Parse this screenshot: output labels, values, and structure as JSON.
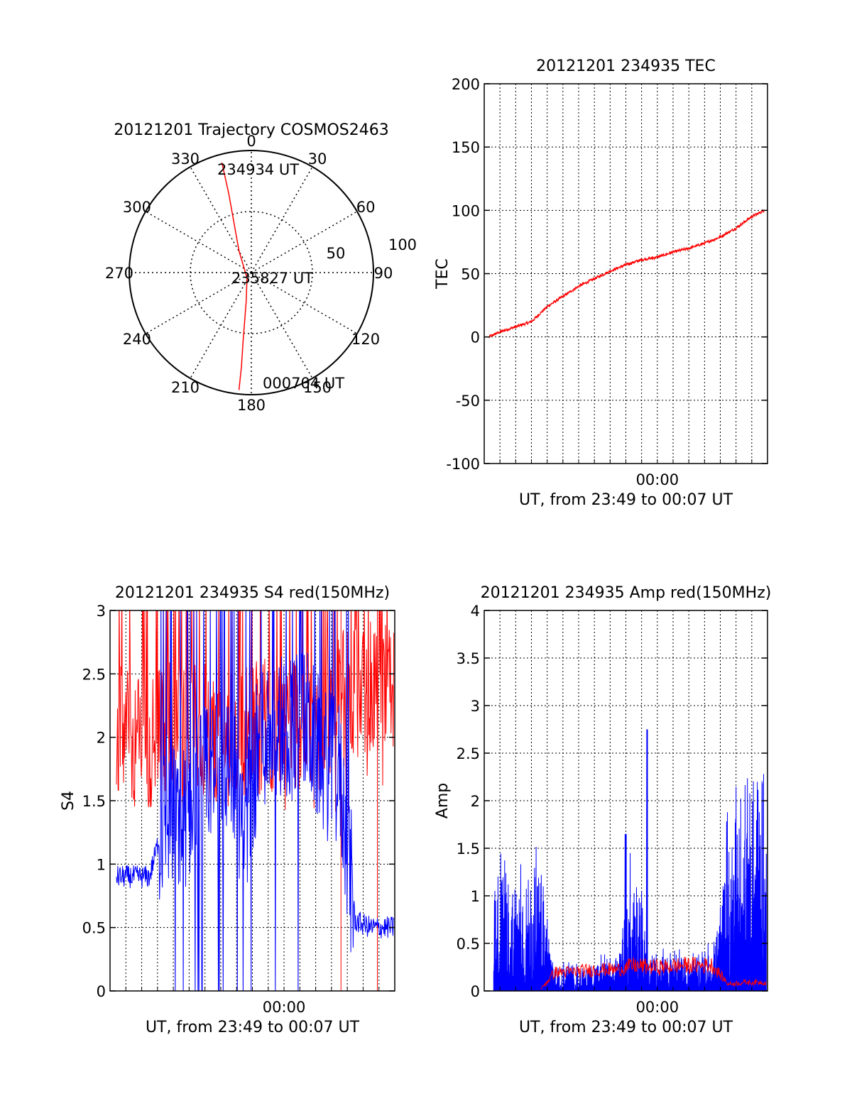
{
  "colors": {
    "red": "#ff0000",
    "blue": "#0000ff",
    "axis": "#000000"
  },
  "polar": {
    "title": "20121201 Trajectory COSMOS2463",
    "azimuth_labels": [
      "0",
      "30",
      "60",
      "90",
      "120",
      "150",
      "180",
      "210",
      "240",
      "270",
      "300",
      "330"
    ],
    "radial_labels": [
      "50",
      "100"
    ],
    "start_label": "234934 UT",
    "mid_label": "235827 UT",
    "end_label": "000704 UT"
  },
  "chart_data": [
    {
      "id": "trajectory",
      "type": "polar",
      "title": "20121201 Trajectory COSMOS2463",
      "azimuth_ticks": [
        0,
        30,
        60,
        90,
        120,
        150,
        180,
        210,
        240,
        270,
        300,
        330
      ],
      "radial_ticks": [
        50,
        100
      ],
      "series": [
        {
          "color": "red",
          "points": [
            {
              "az": 345,
              "zenith_angle": 84
            },
            {
              "az": 344,
              "zenith_angle": 60
            },
            {
              "az": 340,
              "zenith_angle": 36
            },
            {
              "az": 330,
              "zenith_angle": 18
            },
            {
              "az": 220,
              "zenith_angle": 5
            },
            {
              "az": 190,
              "zenith_angle": 22
            },
            {
              "az": 187,
              "zenith_angle": 48
            },
            {
              "az": 186,
              "zenith_angle": 70
            },
            {
              "az": 186,
              "zenith_angle": 87
            }
          ]
        }
      ]
    },
    {
      "id": "tec",
      "type": "line",
      "title": "20121201 234935 TEC",
      "xlabel": "UT, from 23:49 to 00:07 UT",
      "ylabel": "TEC",
      "x_tick_labels": [
        {
          "value": 11,
          "label": "00:00"
        }
      ],
      "xlim": [
        0,
        18
      ],
      "ylim": [
        -100,
        200
      ],
      "y_ticks": [
        -100,
        -50,
        0,
        50,
        100,
        150,
        200
      ],
      "series": [
        {
          "color": "red",
          "x": [
            0.3,
            1,
            2,
            3,
            4,
            5,
            6,
            7,
            8,
            9,
            10,
            11,
            12,
            13,
            14,
            15,
            16,
            17,
            17.8
          ],
          "y": [
            0,
            4,
            8,
            12,
            24,
            32,
            40,
            46,
            52,
            57,
            61,
            63,
            67,
            70,
            74,
            79,
            86,
            95,
            100
          ]
        }
      ]
    },
    {
      "id": "s4",
      "type": "line",
      "title": "20121201 234935 S4 red(150MHz)",
      "xlabel": "UT, from 23:49 to 00:07 UT",
      "ylabel": "S4",
      "x_tick_labels": [
        {
          "value": 11,
          "label": "00:00"
        }
      ],
      "xlim": [
        0,
        18
      ],
      "ylim": [
        0,
        3
      ],
      "y_ticks": [
        0,
        0.5,
        1,
        1.5,
        2,
        2.5,
        3
      ],
      "series": [
        {
          "color": "red",
          "x": [
            0.5,
            1.5,
            2.5,
            3.5,
            4.5,
            5.5,
            6.5,
            7.5,
            8.5,
            9.5,
            10.5,
            11.5,
            12.5,
            13.5,
            14.5,
            15.5,
            16.5,
            17.5
          ],
          "y": [
            2.05,
            2.0,
            1.9,
            2.1,
            2.1,
            2.05,
            2.0,
            2.0,
            2.05,
            2.1,
            2.1,
            2.15,
            2.1,
            2.2,
            2.3,
            2.35,
            2.4,
            2.4
          ]
        },
        {
          "color": "blue",
          "x": [
            0.5,
            1.5,
            2.5,
            3.5,
            4.5,
            5.5,
            6.5,
            7.5,
            8.5,
            9.5,
            10.5,
            11.5,
            12.5,
            13.5,
            14.5,
            15.5,
            16.5,
            17.5
          ],
          "y": [
            0.9,
            0.9,
            0.9,
            1.4,
            1.3,
            1.6,
            1.7,
            1.8,
            1.3,
            2.0,
            2.1,
            2.1,
            2.1,
            1.8,
            1.7,
            0.55,
            0.5,
            0.5
          ]
        }
      ]
    },
    {
      "id": "amp",
      "type": "area",
      "title": "20121201 234935 Amp red(150MHz)",
      "xlabel": "UT, from 23:49 to 00:07 UT",
      "ylabel": "Amp",
      "x_tick_labels": [
        {
          "value": 11,
          "label": "00:00"
        }
      ],
      "xlim": [
        0,
        18
      ],
      "ylim": [
        0,
        4
      ],
      "y_ticks": [
        0,
        0.5,
        1,
        1.5,
        2,
        2.5,
        3,
        3.5,
        4
      ],
      "series": [
        {
          "color": "blue",
          "x": [
            0.5,
            1.5,
            2.5,
            3.5,
            4.5,
            5.5,
            6.5,
            7.5,
            8.5,
            9.5,
            10.5,
            11.5,
            12.5,
            13.5,
            14.5,
            15.5,
            16.5,
            17.5
          ],
          "y": [
            1.3,
            1.2,
            1.2,
            1.2,
            0.25,
            0.25,
            0.25,
            0.3,
            0.3,
            1.5,
            0.4,
            0.35,
            0.35,
            0.35,
            0.4,
            1.5,
            1.8,
            1.7
          ]
        },
        {
          "color": "red",
          "x": [
            0.5,
            1.5,
            2.5,
            3.5,
            4.5,
            5.5,
            6.5,
            7.5,
            8.5,
            9.5,
            10.5,
            11.5,
            12.5,
            13.5,
            14.5,
            15.5,
            16.5,
            17.5
          ],
          "y": [
            0,
            0,
            0,
            0,
            0.22,
            0.22,
            0.24,
            0.25,
            0.25,
            0.3,
            0.28,
            0.28,
            0.3,
            0.3,
            0.3,
            0.08,
            0.1,
            0.1
          ]
        }
      ]
    }
  ]
}
